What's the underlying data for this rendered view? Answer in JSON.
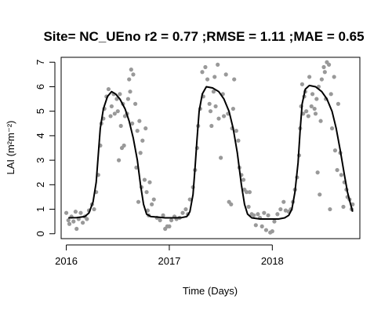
{
  "chart_data": {
    "type": "scatter",
    "title": "Site= NC_UEno r2 = 0.77 ;RMSE = 1.11 ;MAE = 0.65",
    "xlabel": "Time (Days)",
    "ylabel": "LAI (m²m⁻²)",
    "xlim": [
      2015.95,
      2018.85
    ],
    "ylim": [
      -0.2,
      7.2
    ],
    "x_ticks": [
      2016,
      2017,
      2018
    ],
    "x_tick_labels": [
      "2016",
      "2017",
      "2018"
    ],
    "y_ticks": [
      0,
      1,
      2,
      3,
      4,
      5,
      6,
      7
    ],
    "y_tick_labels": [
      "0",
      "1",
      "2",
      "3",
      "4",
      "5",
      "6",
      "7"
    ],
    "grid": false,
    "series": [
      {
        "kind": "points",
        "color": "#999999",
        "points": [
          [
            2016.0,
            0.85
          ],
          [
            2016.02,
            0.55
          ],
          [
            2016.03,
            0.4
          ],
          [
            2016.05,
            0.7
          ],
          [
            2016.07,
            0.5
          ],
          [
            2016.09,
            0.9
          ],
          [
            2016.1,
            0.2
          ],
          [
            2016.12,
            0.6
          ],
          [
            2016.14,
            0.85
          ],
          [
            2016.16,
            0.45
          ],
          [
            2016.18,
            0.7
          ],
          [
            2016.2,
            0.6
          ],
          [
            2016.22,
            0.95
          ],
          [
            2016.25,
            1.2
          ],
          [
            2016.27,
            1.0
          ],
          [
            2016.29,
            1.7
          ],
          [
            2016.31,
            2.4
          ],
          [
            2016.33,
            3.6
          ],
          [
            2016.34,
            4.5
          ],
          [
            2016.36,
            4.7
          ],
          [
            2016.37,
            5.1
          ],
          [
            2016.39,
            5.6
          ],
          [
            2016.41,
            5.9
          ],
          [
            2016.43,
            4.8
          ],
          [
            2016.44,
            5.2
          ],
          [
            2016.46,
            5.7
          ],
          [
            2016.47,
            4.9
          ],
          [
            2016.49,
            5.5
          ],
          [
            2016.5,
            5.0
          ],
          [
            2016.51,
            3.0
          ],
          [
            2016.52,
            5.7
          ],
          [
            2016.53,
            4.4
          ],
          [
            2016.54,
            3.5
          ],
          [
            2016.55,
            5.3
          ],
          [
            2016.56,
            3.6
          ],
          [
            2016.57,
            4.8
          ],
          [
            2016.59,
            4.9
          ],
          [
            2016.6,
            5.5
          ],
          [
            2016.61,
            6.3
          ],
          [
            2016.62,
            5.8
          ],
          [
            2016.63,
            6.7
          ],
          [
            2016.64,
            4.5
          ],
          [
            2016.65,
            6.5
          ],
          [
            2016.67,
            5.3
          ],
          [
            2016.68,
            2.7
          ],
          [
            2016.69,
            4.2
          ],
          [
            2016.7,
            1.3
          ],
          [
            2016.71,
            4.6
          ],
          [
            2016.72,
            3.3
          ],
          [
            2016.73,
            1.9
          ],
          [
            2016.74,
            3.8
          ],
          [
            2016.76,
            2.2
          ],
          [
            2016.77,
            4.3
          ],
          [
            2016.78,
            1.7
          ],
          [
            2016.79,
            0.95
          ],
          [
            2016.8,
            0.75
          ],
          [
            2016.81,
            2.1
          ],
          [
            2016.83,
            1.2
          ],
          [
            2016.85,
            1.4
          ],
          [
            2016.88,
            0.65
          ],
          [
            2016.91,
            0.55
          ],
          [
            2016.94,
            0.75
          ],
          [
            2016.96,
            0.2
          ],
          [
            2016.98,
            0.3
          ],
          [
            2017.0,
            0.3
          ],
          [
            2017.02,
            0.55
          ],
          [
            2017.05,
            0.7
          ],
          [
            2017.07,
            0.6
          ],
          [
            2017.1,
            0.65
          ],
          [
            2017.13,
            0.85
          ],
          [
            2017.16,
            1.0
          ],
          [
            2017.18,
            0.8
          ],
          [
            2017.2,
            1.4
          ],
          [
            2017.23,
            1.9
          ],
          [
            2017.25,
            2.6
          ],
          [
            2017.27,
            3.5
          ],
          [
            2017.28,
            4.4
          ],
          [
            2017.3,
            5.1
          ],
          [
            2017.32,
            6.6
          ],
          [
            2017.33,
            5.6
          ],
          [
            2017.35,
            6.8
          ],
          [
            2017.37,
            6.3
          ],
          [
            2017.39,
            5.3
          ],
          [
            2017.4,
            5.0
          ],
          [
            2017.41,
            4.4
          ],
          [
            2017.43,
            5.8
          ],
          [
            2017.44,
            6.4
          ],
          [
            2017.45,
            5.2
          ],
          [
            2017.47,
            6.9
          ],
          [
            2017.48,
            4.7
          ],
          [
            2017.5,
            3.1
          ],
          [
            2017.52,
            5.7
          ],
          [
            2017.53,
            4.8
          ],
          [
            2017.55,
            6.5
          ],
          [
            2017.57,
            4.9
          ],
          [
            2017.58,
            1.3
          ],
          [
            2017.6,
            1.2
          ],
          [
            2017.61,
            4.3
          ],
          [
            2017.62,
            5.1
          ],
          [
            2017.63,
            6.3
          ],
          [
            2017.65,
            4.2
          ],
          [
            2017.67,
            3.8
          ],
          [
            2017.68,
            2.7
          ],
          [
            2017.7,
            2.4
          ],
          [
            2017.72,
            2.2
          ],
          [
            2017.73,
            1.8
          ],
          [
            2017.75,
            1.7
          ],
          [
            2017.77,
            1.1
          ],
          [
            2017.78,
            1.7
          ],
          [
            2017.8,
            0.8
          ],
          [
            2017.82,
            0.75
          ],
          [
            2017.84,
            0.35
          ],
          [
            2017.86,
            0.8
          ],
          [
            2017.88,
            0.65
          ],
          [
            2017.9,
            0.3
          ],
          [
            2017.92,
            0.85
          ],
          [
            2017.94,
            0.15
          ],
          [
            2017.96,
            0.75
          ],
          [
            2017.98,
            0.05
          ],
          [
            2018.0,
            0.1
          ],
          [
            2018.02,
            0.5
          ],
          [
            2018.05,
            0.8
          ],
          [
            2018.08,
            1.0
          ],
          [
            2018.11,
            1.3
          ],
          [
            2018.13,
            0.95
          ],
          [
            2018.16,
            0.9
          ],
          [
            2018.18,
            1.0
          ],
          [
            2018.2,
            1.3
          ],
          [
            2018.22,
            1.8
          ],
          [
            2018.24,
            2.3
          ],
          [
            2018.26,
            3.2
          ],
          [
            2018.27,
            4.3
          ],
          [
            2018.28,
            5.2
          ],
          [
            2018.29,
            6.1
          ],
          [
            2018.3,
            4.9
          ],
          [
            2018.31,
            5.6
          ],
          [
            2018.32,
            5.8
          ],
          [
            2018.33,
            5.0
          ],
          [
            2018.35,
            4.8
          ],
          [
            2018.36,
            6.4
          ],
          [
            2018.38,
            5.2
          ],
          [
            2018.39,
            5.7
          ],
          [
            2018.41,
            5.1
          ],
          [
            2018.42,
            4.9
          ],
          [
            2018.43,
            5.5
          ],
          [
            2018.44,
            2.5
          ],
          [
            2018.45,
            6.0
          ],
          [
            2018.46,
            1.6
          ],
          [
            2018.47,
            4.6
          ],
          [
            2018.48,
            6.3
          ],
          [
            2018.5,
            6.8
          ],
          [
            2018.51,
            6.6
          ],
          [
            2018.52,
            5.5
          ],
          [
            2018.53,
            7.0
          ],
          [
            2018.55,
            6.9
          ],
          [
            2018.56,
            1.0
          ],
          [
            2018.57,
            5.7
          ],
          [
            2018.58,
            4.3
          ],
          [
            2018.6,
            6.4
          ],
          [
            2018.61,
            3.4
          ],
          [
            2018.63,
            2.6
          ],
          [
            2018.64,
            5.3
          ],
          [
            2018.66,
            3.3
          ],
          [
            2018.67,
            2.4
          ],
          [
            2018.69,
            1.1
          ],
          [
            2018.7,
            2.1
          ],
          [
            2018.72,
            1.8
          ],
          [
            2018.73,
            1.5
          ],
          [
            2018.75,
            1.4
          ],
          [
            2018.77,
            1.0
          ],
          [
            2018.78,
            1.2
          ]
        ]
      },
      {
        "kind": "line",
        "color": "#000000",
        "points": [
          [
            2016.02,
            0.65
          ],
          [
            2016.1,
            0.66
          ],
          [
            2016.18,
            0.7
          ],
          [
            2016.22,
            0.85
          ],
          [
            2016.26,
            1.3
          ],
          [
            2016.29,
            2.1
          ],
          [
            2016.31,
            3.2
          ],
          [
            2016.33,
            4.3
          ],
          [
            2016.36,
            5.1
          ],
          [
            2016.4,
            5.6
          ],
          [
            2016.44,
            5.8
          ],
          [
            2016.48,
            5.7
          ],
          [
            2016.52,
            5.5
          ],
          [
            2016.57,
            5.1
          ],
          [
            2016.61,
            4.6
          ],
          [
            2016.65,
            3.9
          ],
          [
            2016.69,
            3.0
          ],
          [
            2016.72,
            2.0
          ],
          [
            2016.75,
            1.2
          ],
          [
            2016.78,
            0.8
          ],
          [
            2016.82,
            0.7
          ],
          [
            2016.88,
            0.68
          ],
          [
            2016.96,
            0.65
          ],
          [
            2017.05,
            0.65
          ],
          [
            2017.12,
            0.66
          ],
          [
            2017.17,
            0.7
          ],
          [
            2017.2,
            0.9
          ],
          [
            2017.23,
            1.6
          ],
          [
            2017.25,
            2.7
          ],
          [
            2017.27,
            3.9
          ],
          [
            2017.29,
            5.0
          ],
          [
            2017.32,
            5.7
          ],
          [
            2017.36,
            6.0
          ],
          [
            2017.42,
            5.95
          ],
          [
            2017.48,
            5.8
          ],
          [
            2017.53,
            5.5
          ],
          [
            2017.58,
            5.0
          ],
          [
            2017.62,
            4.3
          ],
          [
            2017.66,
            3.3
          ],
          [
            2017.7,
            2.0
          ],
          [
            2017.73,
            1.2
          ],
          [
            2017.76,
            0.8
          ],
          [
            2017.8,
            0.65
          ],
          [
            2017.88,
            0.6
          ],
          [
            2017.96,
            0.6
          ],
          [
            2018.06,
            0.6
          ],
          [
            2018.12,
            0.65
          ],
          [
            2018.16,
            0.75
          ],
          [
            2018.19,
            1.0
          ],
          [
            2018.22,
            1.7
          ],
          [
            2018.25,
            2.9
          ],
          [
            2018.27,
            4.2
          ],
          [
            2018.29,
            5.3
          ],
          [
            2018.32,
            5.9
          ],
          [
            2018.36,
            6.05
          ],
          [
            2018.42,
            6.0
          ],
          [
            2018.48,
            5.8
          ],
          [
            2018.53,
            5.5
          ],
          [
            2018.58,
            5.0
          ],
          [
            2018.62,
            4.3
          ],
          [
            2018.66,
            3.4
          ],
          [
            2018.7,
            2.4
          ],
          [
            2018.73,
            1.7
          ],
          [
            2018.76,
            1.2
          ],
          [
            2018.78,
            0.9
          ]
        ]
      }
    ]
  }
}
